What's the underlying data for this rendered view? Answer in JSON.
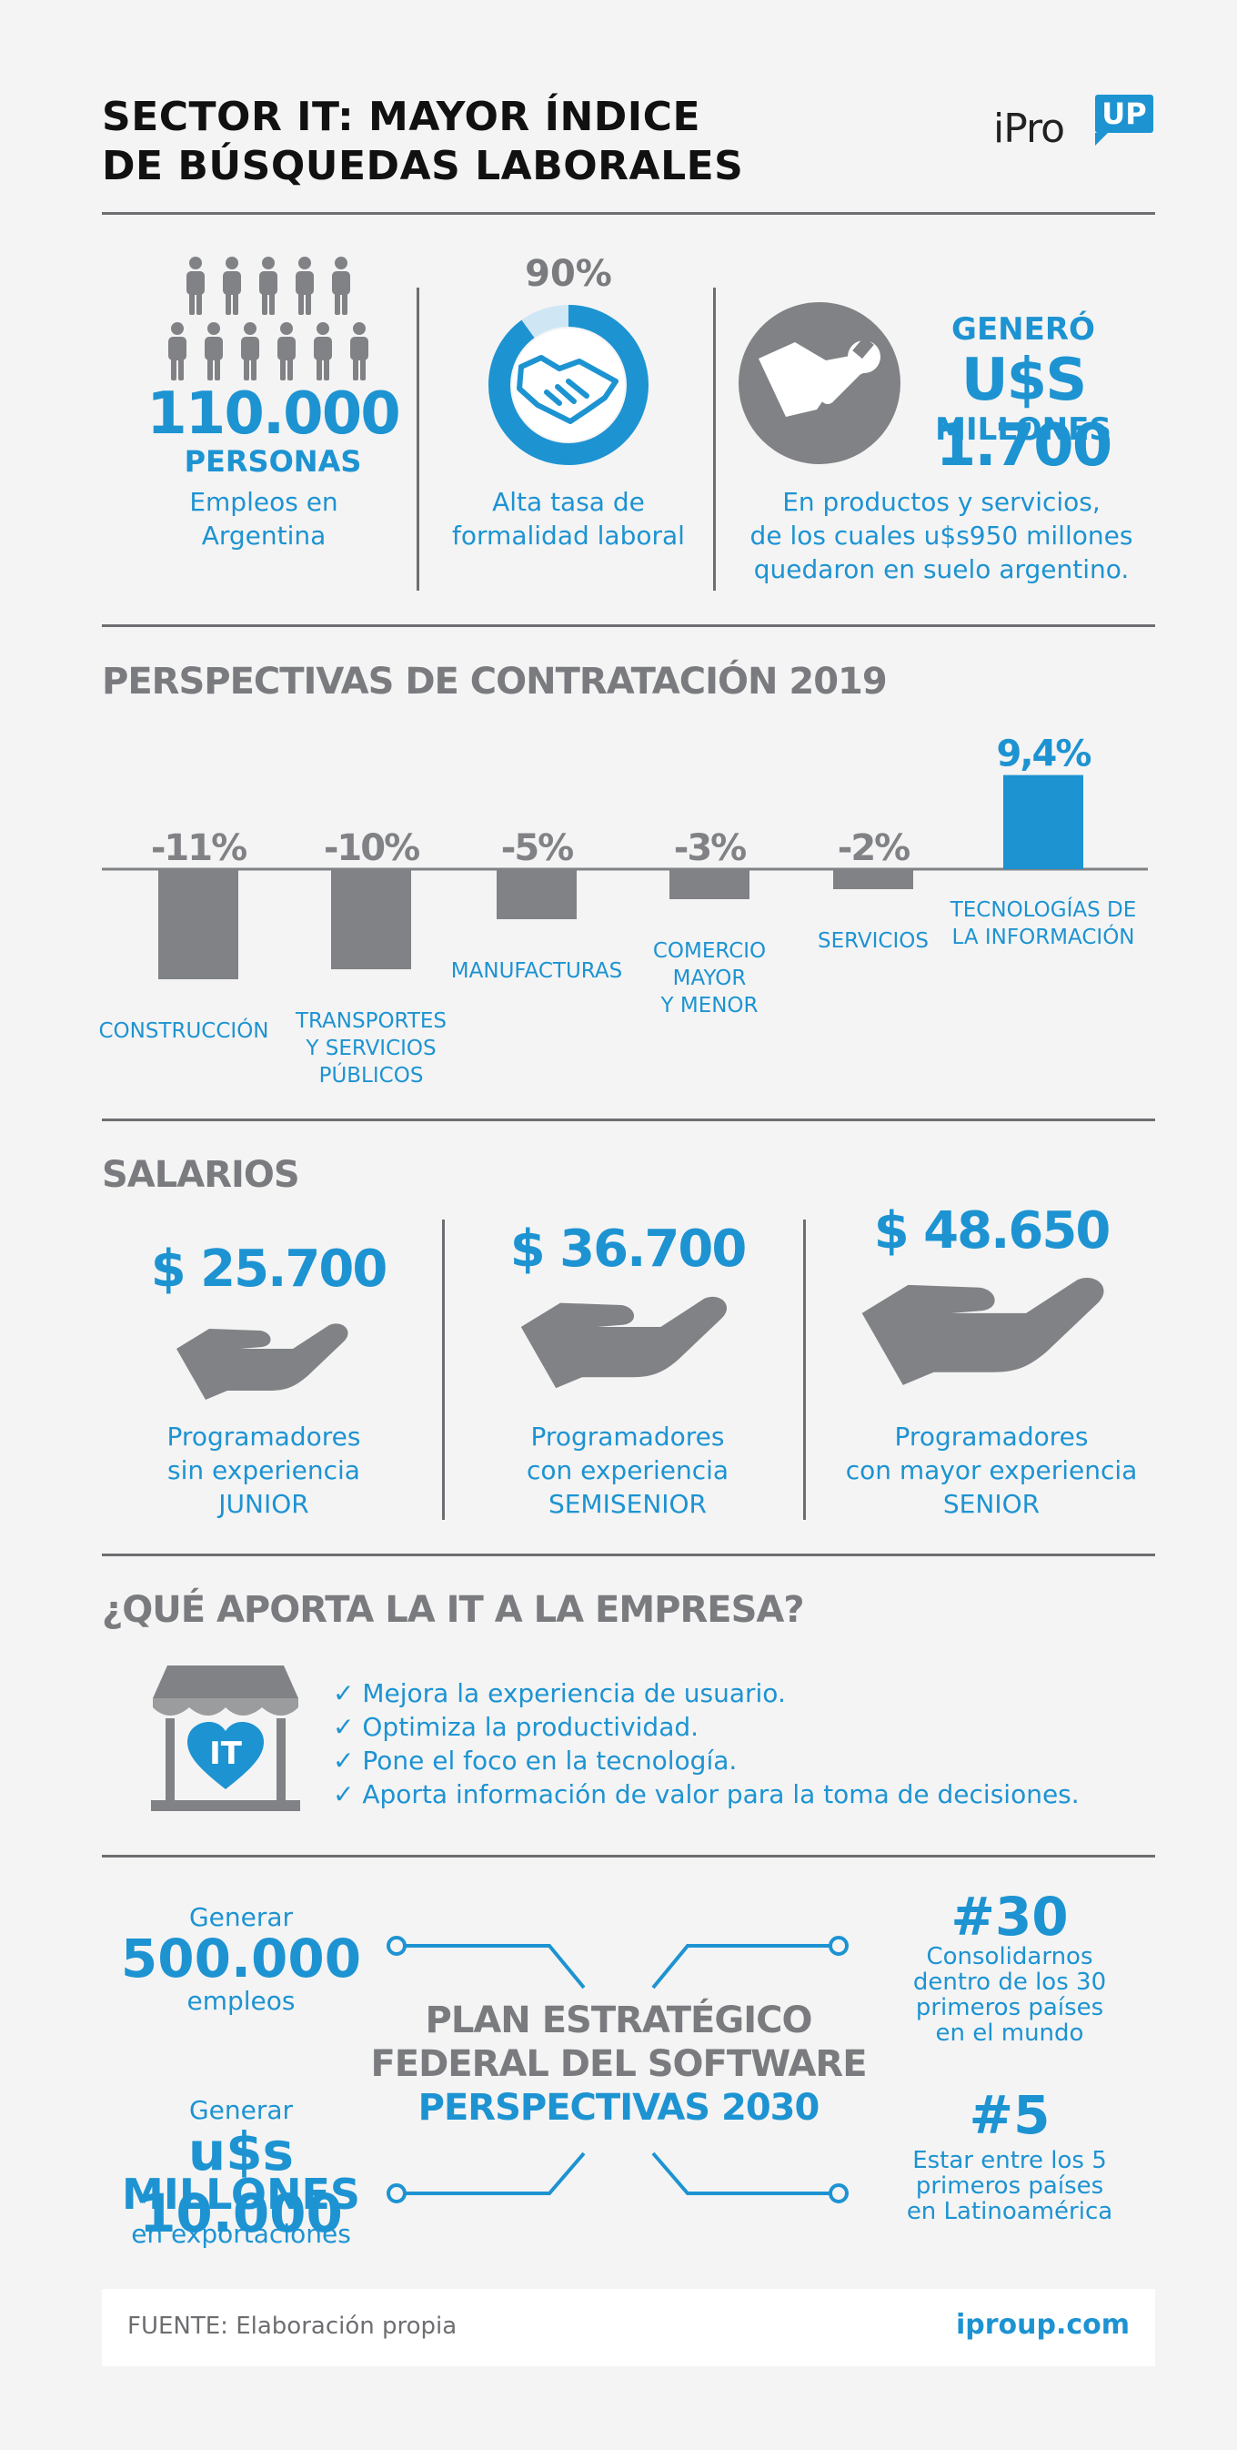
{
  "header": {
    "title_line1": "SECTOR IT: MAYOR ÍNDICE",
    "title_line2": "DE BÚSQUEDAS LABORALES",
    "logo_text": "iPro",
    "logo_badge": "UP"
  },
  "stats": {
    "people": {
      "value": "110.000",
      "unit": "PERSONAS",
      "caption_line1": "Empleos en",
      "caption_line2": "Argentina"
    },
    "formality": {
      "percent": "90%",
      "percent_value": 90,
      "caption_line1": "Alta tasa de",
      "caption_line2": "formalidad laboral"
    },
    "revenue": {
      "line1": "GENERÓ",
      "line2": "U$S 1.700",
      "line3": "MILLONES",
      "caption_line1": "En productos y servicios,",
      "caption_line2": "de los cuales u$s950 millones",
      "caption_line3": "quedaron en suelo argentino."
    }
  },
  "hiring": {
    "title": "PERSPECTIVAS DE CONTRATACIÓN 2019",
    "chart_data": {
      "type": "bar",
      "categories": [
        "CONSTRUCCIÓN",
        "TRANSPORTES Y SERVICIOS PÚBLICOS",
        "MANUFACTURAS",
        "COMERCIO MAYOR Y MENOR",
        "SERVICIOS",
        "TECNOLOGÍAS DE LA INFORMACIÓN"
      ],
      "values": [
        -11,
        -10,
        -5,
        -3,
        -2,
        9.4
      ],
      "value_labels": [
        "-11%",
        "-10%",
        "-5%",
        "-3%",
        "-2%",
        "9,4%"
      ],
      "label_lines": [
        [
          "CONSTRUCCIÓN"
        ],
        [
          "TRANSPORTES",
          "Y SERVICIOS",
          "PÚBLICOS"
        ],
        [
          "MANUFACTURAS"
        ],
        [
          "COMERCIO",
          "MAYOR",
          "Y MENOR"
        ],
        [
          "SERVICIOS"
        ],
        [
          "TECNOLOGÍAS DE",
          "LA INFORMACIÓN"
        ]
      ],
      "colors": {
        "negative": "#808285",
        "positive": "#1d93d2"
      }
    }
  },
  "salaries": {
    "title": "SALARIOS",
    "items": [
      {
        "amount": "$ 25.700",
        "line1": "Programadores",
        "line2": "sin experiencia",
        "line3": "JUNIOR"
      },
      {
        "amount": "$ 36.700",
        "line1": "Programadores",
        "line2": "con experiencia",
        "line3": "SEMISENIOR"
      },
      {
        "amount": "$ 48.650",
        "line1": "Programadores",
        "line2": "con mayor experiencia",
        "line3": "SENIOR"
      }
    ]
  },
  "contribution": {
    "title": "¿QUÉ APORTA LA IT A LA EMPRESA?",
    "icon_text": "IT",
    "items": [
      "Mejora la experiencia de usuario.",
      "Optimiza la productividad.",
      "Pone el foco en la tecnología.",
      "Aporta información de valor para la toma de decisiones."
    ]
  },
  "plan": {
    "title_line1": "PLAN ESTRATÉGICO",
    "title_line2": "FEDERAL DEL SOFTWARE",
    "title_line3": "PERSPECTIVAS 2030",
    "jobs": {
      "pre": "Generar",
      "value": "500.000",
      "post": "empleos"
    },
    "exports": {
      "pre": "Generar",
      "value": "u$s 10.000",
      "value2": "MILLONES",
      "post": "en exportaciones"
    },
    "world": {
      "rank": "#30",
      "line1": "Consolidarnos",
      "line2": "dentro de los 30",
      "line3": "primeros países",
      "line4": "en el mundo"
    },
    "latam": {
      "rank": "#5",
      "line1": "Estar entre los 5",
      "line2": "primeros países",
      "line3": "en Latinoamérica"
    }
  },
  "footer": {
    "source": "FUENTE: Elaboración propia",
    "site": "iproup.com"
  },
  "colors": {
    "accent": "#1d93d2",
    "grey": "#808285",
    "dark": "#111111",
    "background": "#f4f4f4"
  }
}
